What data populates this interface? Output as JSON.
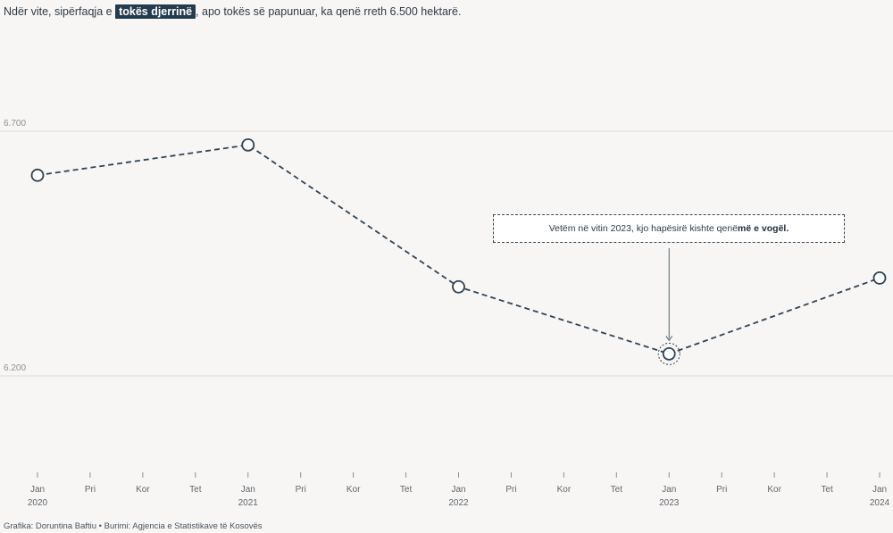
{
  "header": {
    "title_pre": "Ndër vite, sipërfaqja e ",
    "title_highlight": "tokës djerrinë",
    "title_post": ", apo tokës së papunuar, ka qenë rreth 6.500 hektarë."
  },
  "annotation": {
    "text_pre": "Vetëm në vitin 2023, kjo hapësirë kishte qenë ",
    "text_bold": "më e vogël."
  },
  "footer": {
    "source": "Grafika: Doruntina Baftiu • Burimi: Agjencia e Statistikave të Kosovës"
  },
  "colors": {
    "line": "#2f4356",
    "point_fill": "#ffffff",
    "highlight_bg": "#243b4d",
    "grid": "#dedad6",
    "background": "#f8f6f4"
  },
  "chart_data": {
    "type": "line",
    "x": [
      "Jan 2020",
      "Jan 2021",
      "Jan 2022",
      "Jan 2023",
      "Jan 2024"
    ],
    "values": [
      6610,
      6672,
      6382,
      6245,
      6400
    ],
    "highlight_index": 3,
    "ylim": [
      6000,
      6900
    ],
    "yticks": [
      {
        "value": 6700,
        "label": "6.700"
      },
      {
        "value": 6200,
        "label": "6.200"
      }
    ],
    "xticks": [
      {
        "label": "Jan",
        "year": "2020"
      },
      {
        "label": "Pri",
        "year": ""
      },
      {
        "label": "Kor",
        "year": ""
      },
      {
        "label": "Tet",
        "year": ""
      },
      {
        "label": "Jan",
        "year": "2021"
      },
      {
        "label": "Pri",
        "year": ""
      },
      {
        "label": "Kor",
        "year": ""
      },
      {
        "label": "Tet",
        "year": ""
      },
      {
        "label": "Jan",
        "year": "2022"
      },
      {
        "label": "Pri",
        "year": ""
      },
      {
        "label": "Kor",
        "year": ""
      },
      {
        "label": "Tet",
        "year": ""
      },
      {
        "label": "Jan",
        "year": "2023"
      },
      {
        "label": "Pri",
        "year": ""
      },
      {
        "label": "Kor",
        "year": ""
      },
      {
        "label": "Tet",
        "year": ""
      },
      {
        "label": "Jan",
        "year": "2024"
      }
    ],
    "grid": true,
    "line_style": "dashed"
  }
}
